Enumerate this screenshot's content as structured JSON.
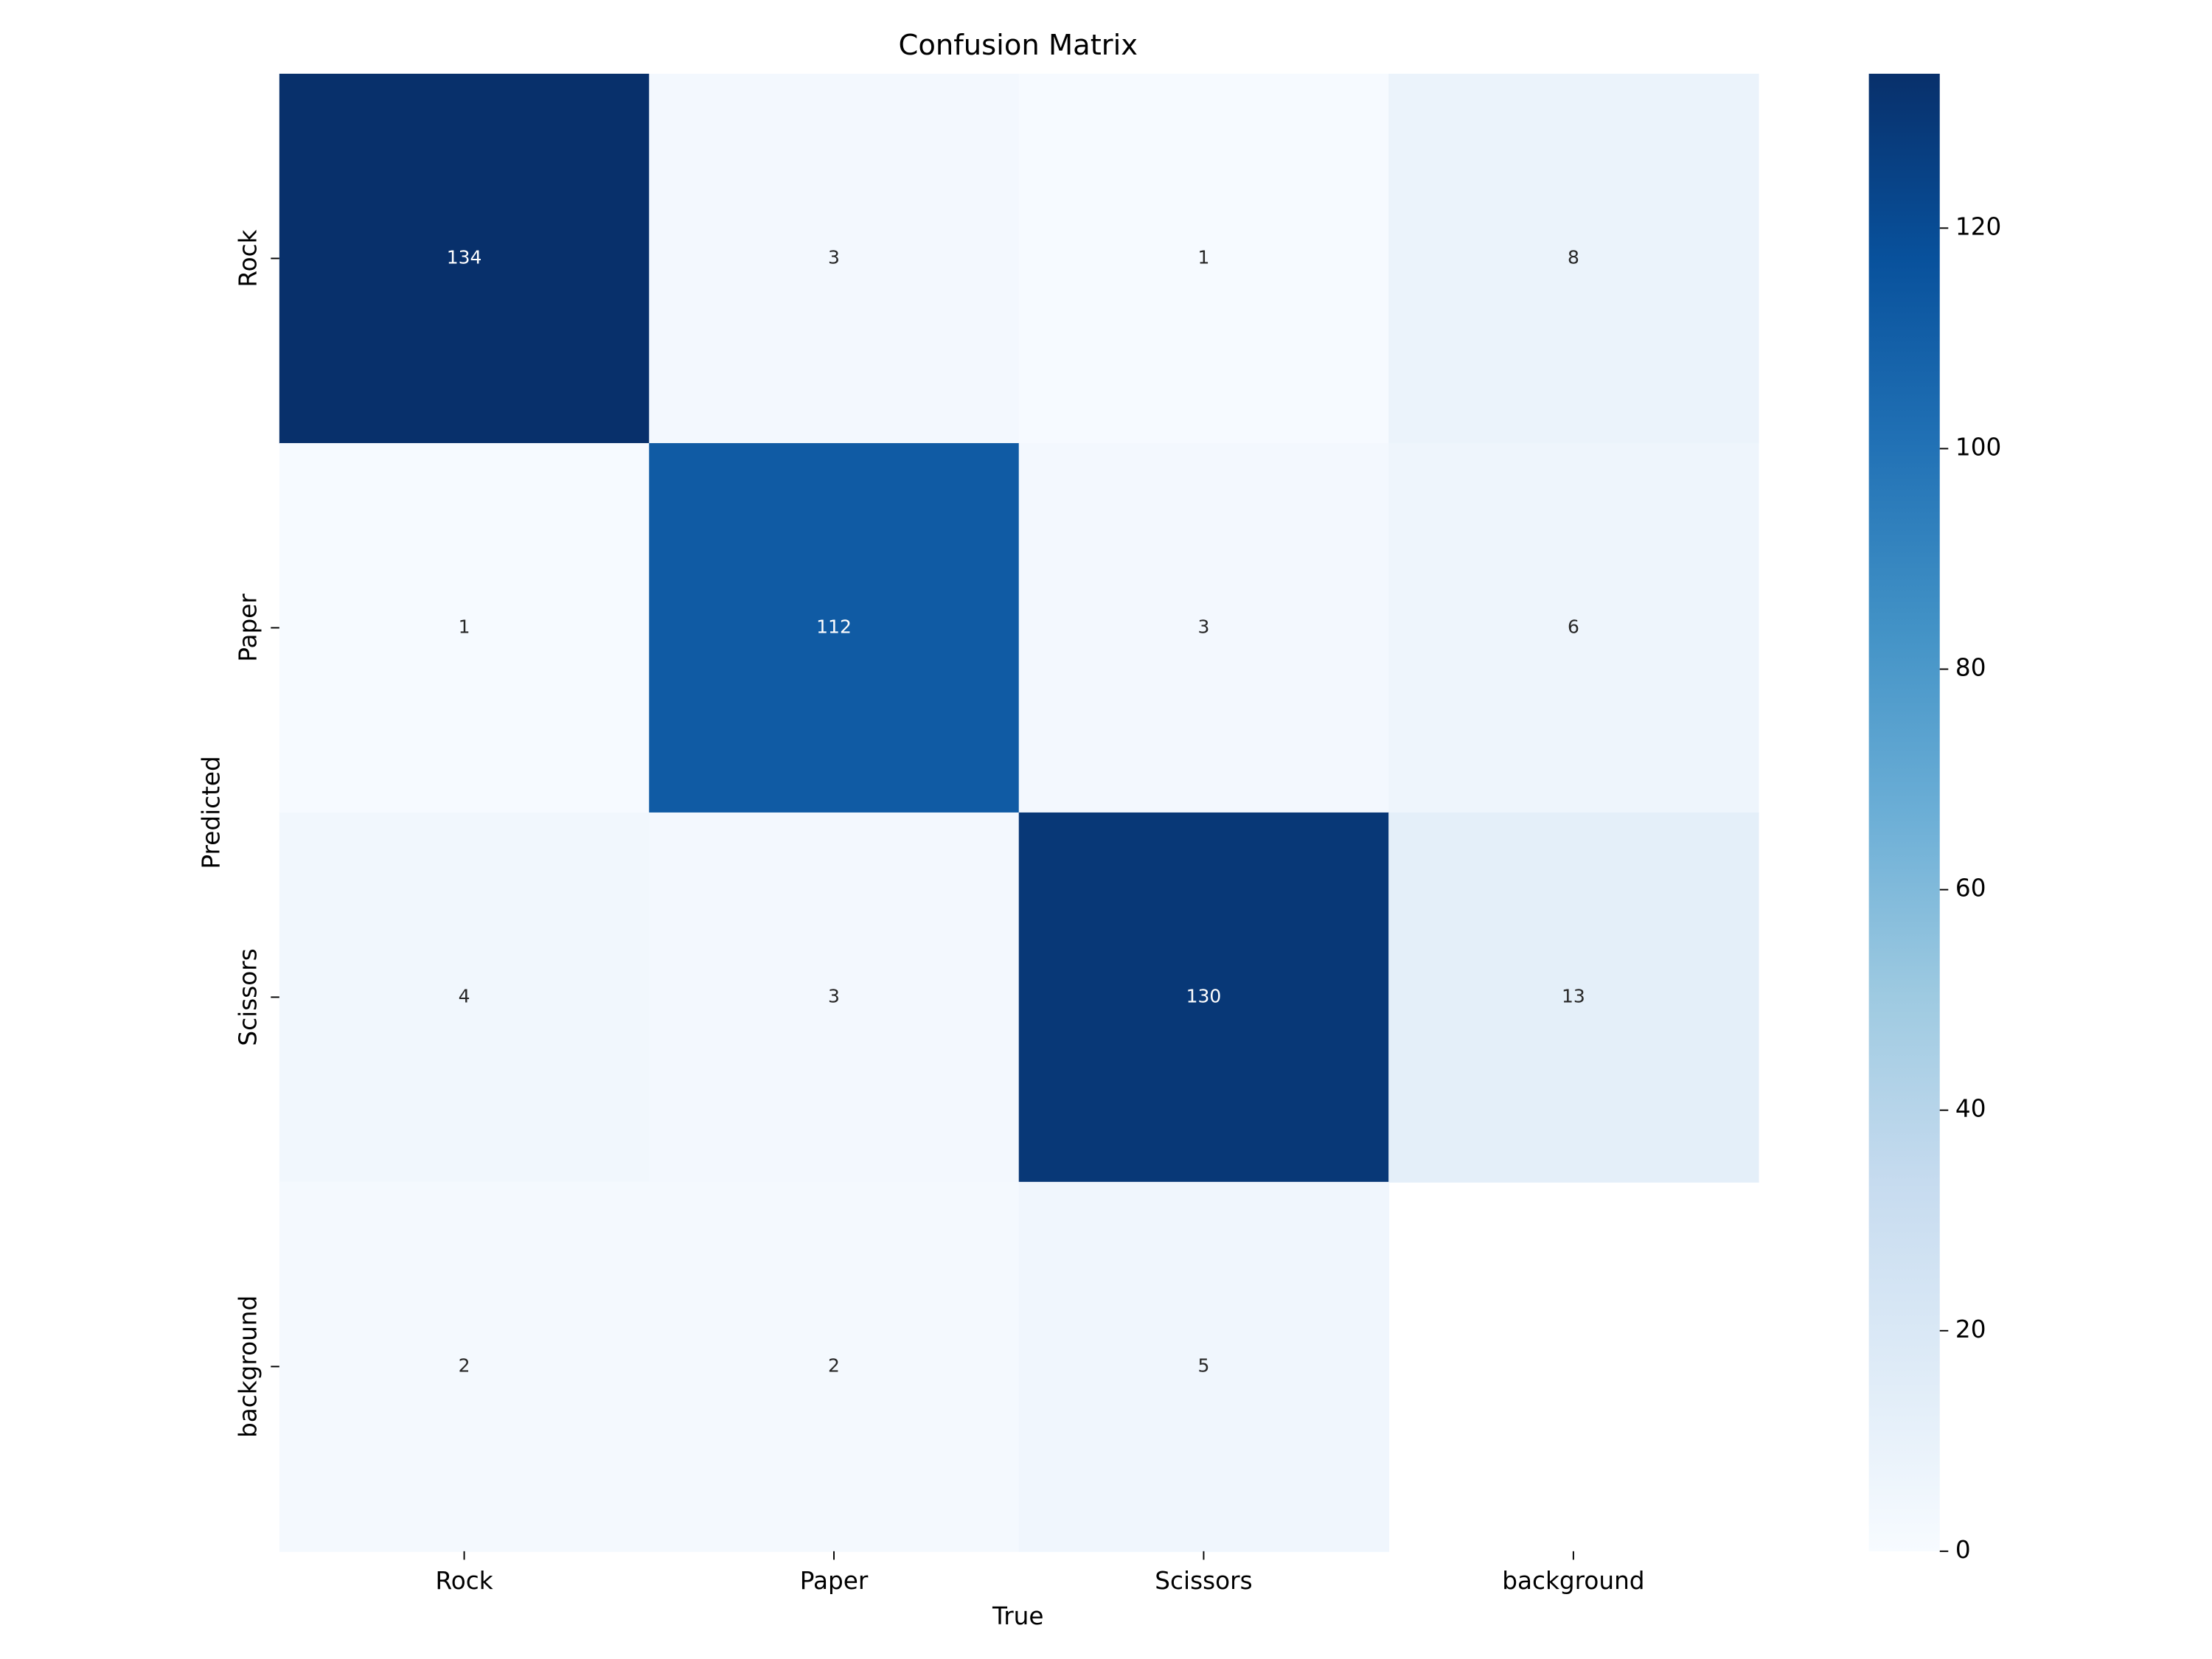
{
  "chart_data": {
    "type": "heatmap",
    "title": "Confusion Matrix",
    "x_label": "True",
    "y_label": "Predicted",
    "x_categories": [
      "Rock",
      "Paper",
      "Scissors",
      "background"
    ],
    "y_categories": [
      "Rock",
      "Paper",
      "Scissors",
      "background"
    ],
    "values": [
      [
        134,
        3,
        1,
        8
      ],
      [
        1,
        112,
        3,
        6
      ],
      [
        4,
        3,
        130,
        13
      ],
      [
        2,
        2,
        5,
        null
      ]
    ],
    "colormap": [
      "#f7fbff",
      "#deebf7",
      "#c6dbef",
      "#9ecae1",
      "#6baed6",
      "#4292c6",
      "#2171b5",
      "#08519c",
      "#08306b"
    ],
    "zlim": [
      0,
      134
    ],
    "colorbar_ticks": [
      0,
      20,
      40,
      60,
      80,
      100,
      120
    ]
  }
}
